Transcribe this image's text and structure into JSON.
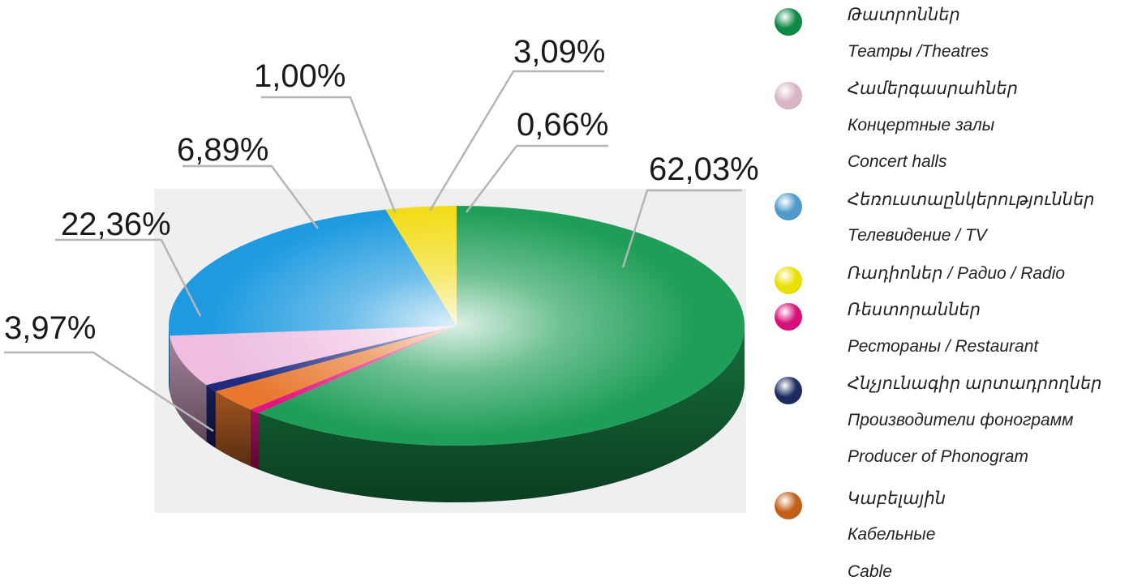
{
  "chart_data": {
    "type": "pie",
    "slices": [
      {
        "value": 62.03,
        "label": "62,03%",
        "color": "#1e9e56"
      },
      {
        "value": 0.66,
        "label": "0,66%",
        "color": "#e0157f"
      },
      {
        "value": 3.09,
        "label": "3,09%",
        "color": "#e8782e"
      },
      {
        "value": 1.0,
        "label": "1,00%",
        "color": "#1f2a80"
      },
      {
        "value": 6.89,
        "label": "6,89%",
        "color": "#eebde0"
      },
      {
        "value": 22.36,
        "label": "22,36%",
        "color": "#1e9be0"
      },
      {
        "value": 3.97,
        "label": "3,97%",
        "color": "#f2dc1a"
      }
    ],
    "background_color": "#efefef"
  },
  "legend": [
    {
      "color": "#0f8a45",
      "lines": [
        "Թատրոններ",
        "Театры /Theatres"
      ]
    },
    {
      "color": "#d8b4c6",
      "lines": [
        "Համերգասրահներ",
        "Концертные залы",
        "Concert halls"
      ]
    },
    {
      "color": "#4f9ac9",
      "lines": [
        "Հեռուստաընկերություններ",
        "Телевидение / TV"
      ]
    },
    {
      "color": "#e8e000",
      "lines": [
        "Ռադիոներ / Радио / Radio"
      ]
    },
    {
      "color": "#d8107a",
      "lines": [
        "Ռեստորաններ",
        "Рестораны / Restaurant"
      ]
    },
    {
      "color": "#1d2c60",
      "lines": [
        "Հնչյունագիր արտադրողներ",
        "Производители фонограмм",
        "Producer of Phonogram"
      ]
    },
    {
      "color": "#c35f18",
      "lines": [
        "Կաբելային",
        "Кабельные",
        "Cable"
      ]
    }
  ]
}
